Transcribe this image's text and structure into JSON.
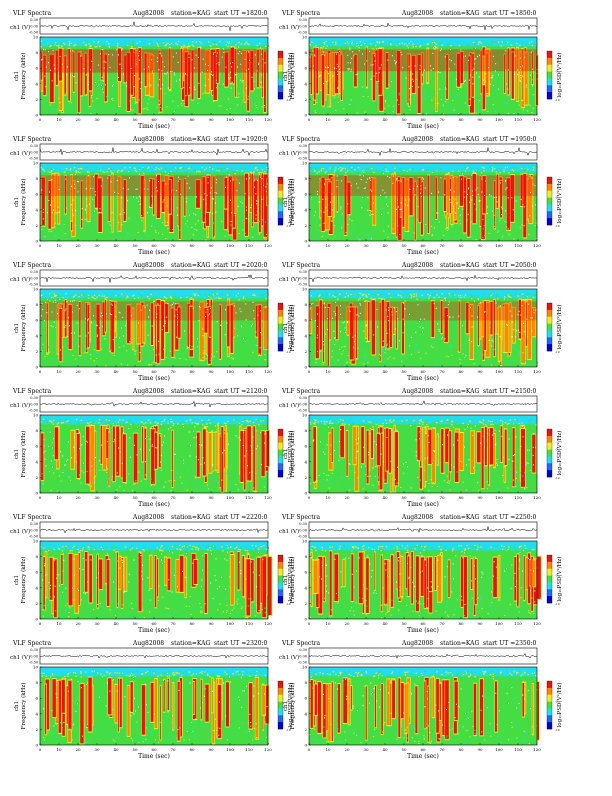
{
  "page": {
    "common": {
      "heading_left": "VLF Spectra",
      "date": "Aug82008",
      "station": "station=KAG",
      "start_prefix": "start  UT  =",
      "wave_ylabel": "ch1 (V)",
      "wave_ticks": [
        "0.30",
        "0.00",
        "-0.30"
      ],
      "spec_ylabel": "ch1\nFrequency  (kHz)",
      "spec_ylabel_top": "ch1",
      "spec_ylabel_bottom": "Frequency  (kHz)",
      "spec_yticks": [
        "0",
        "2",
        "4",
        "6",
        "8",
        "10"
      ],
      "xticks": [
        "0",
        "10",
        "20",
        "30",
        "40",
        "50",
        "60",
        "70",
        "80",
        "90",
        "100",
        "110",
        "120"
      ],
      "xlabel": "Time  (sec)",
      "colorbar_label": "log₁₀PSD(V²/Hz)",
      "colorbar_ticks": [
        "-5",
        "-10"
      ]
    },
    "colors": {
      "low": "#0000cc",
      "cyan": "#22ddee",
      "green": "#44dd44",
      "yellow": "#eeee22",
      "orange": "#ff8800",
      "red": "#ee1111",
      "white": "#ffffff"
    }
  },
  "chart_data": [
    {
      "type": "heatmap",
      "start_ut": "1820:0",
      "xlim": [
        0,
        120
      ],
      "ylim": [
        0,
        10
      ],
      "xlabel": "Time  (sec)",
      "ylabel": "Frequency  (kHz)",
      "wave_ylim": [
        -0.3,
        0.3
      ],
      "activity": 0.85
    },
    {
      "type": "heatmap",
      "start_ut": "1850:0",
      "xlim": [
        0,
        120
      ],
      "ylim": [
        0,
        10
      ],
      "xlabel": "Time  (sec)",
      "ylabel": "Frequency  (kHz)",
      "wave_ylim": [
        -0.3,
        0.3
      ],
      "activity": 0.8
    },
    {
      "type": "heatmap",
      "start_ut": "1920:0",
      "xlim": [
        0,
        120
      ],
      "ylim": [
        0,
        10
      ],
      "xlabel": "Time  (sec)",
      "ylabel": "Frequency  (kHz)",
      "wave_ylim": [
        -0.3,
        0.3
      ],
      "activity": 0.75
    },
    {
      "type": "heatmap",
      "start_ut": "1950:0",
      "xlim": [
        0,
        120
      ],
      "ylim": [
        0,
        10
      ],
      "xlabel": "Time  (sec)",
      "ylabel": "Frequency  (kHz)",
      "wave_ylim": [
        -0.3,
        0.3
      ],
      "activity": 0.75
    },
    {
      "type": "heatmap",
      "start_ut": "2020:0",
      "xlim": [
        0,
        120
      ],
      "ylim": [
        0,
        10
      ],
      "xlabel": "Time  (sec)",
      "ylabel": "Frequency  (kHz)",
      "wave_ylim": [
        -0.3,
        0.3
      ],
      "activity": 0.7
    },
    {
      "type": "heatmap",
      "start_ut": "2050:0",
      "xlim": [
        0,
        120
      ],
      "ylim": [
        0,
        10
      ],
      "xlabel": "Time  (sec)",
      "ylabel": "Frequency  (kHz)",
      "wave_ylim": [
        -0.3,
        0.3
      ],
      "activity": 0.7
    },
    {
      "type": "heatmap",
      "start_ut": "2120:0",
      "xlim": [
        0,
        120
      ],
      "ylim": [
        0,
        10
      ],
      "xlabel": "Time  (sec)",
      "ylabel": "Frequency  (kHz)",
      "wave_ylim": [
        -0.3,
        0.3
      ],
      "activity": 0.55
    },
    {
      "type": "heatmap",
      "start_ut": "2150:0",
      "xlim": [
        0,
        120
      ],
      "ylim": [
        0,
        10
      ],
      "xlabel": "Time  (sec)",
      "ylabel": "Frequency  (kHz)",
      "wave_ylim": [
        -0.3,
        0.3
      ],
      "activity": 0.55
    },
    {
      "type": "heatmap",
      "start_ut": "2220:0",
      "xlim": [
        0,
        120
      ],
      "ylim": [
        0,
        10
      ],
      "xlabel": "Time  (sec)",
      "ylabel": "Frequency  (kHz)",
      "wave_ylim": [
        -0.3,
        0.3
      ],
      "activity": 0.45
    },
    {
      "type": "heatmap",
      "start_ut": "2250:0",
      "xlim": [
        0,
        120
      ],
      "ylim": [
        0,
        10
      ],
      "xlabel": "Time  (sec)",
      "ylabel": "Frequency  (kHz)",
      "wave_ylim": [
        -0.3,
        0.3
      ],
      "activity": 0.45
    },
    {
      "type": "heatmap",
      "start_ut": "2320:0",
      "xlim": [
        0,
        120
      ],
      "ylim": [
        0,
        10
      ],
      "xlabel": "Time  (sec)",
      "ylabel": "Frequency  (kHz)",
      "wave_ylim": [
        -0.3,
        0.3
      ],
      "activity": 0.3
    },
    {
      "type": "heatmap",
      "start_ut": "2350:0",
      "xlim": [
        0,
        120
      ],
      "ylim": [
        0,
        10
      ],
      "xlabel": "Time  (sec)",
      "ylabel": "Frequency  (kHz)",
      "wave_ylim": [
        -0.3,
        0.3
      ],
      "activity": 0.3
    }
  ]
}
